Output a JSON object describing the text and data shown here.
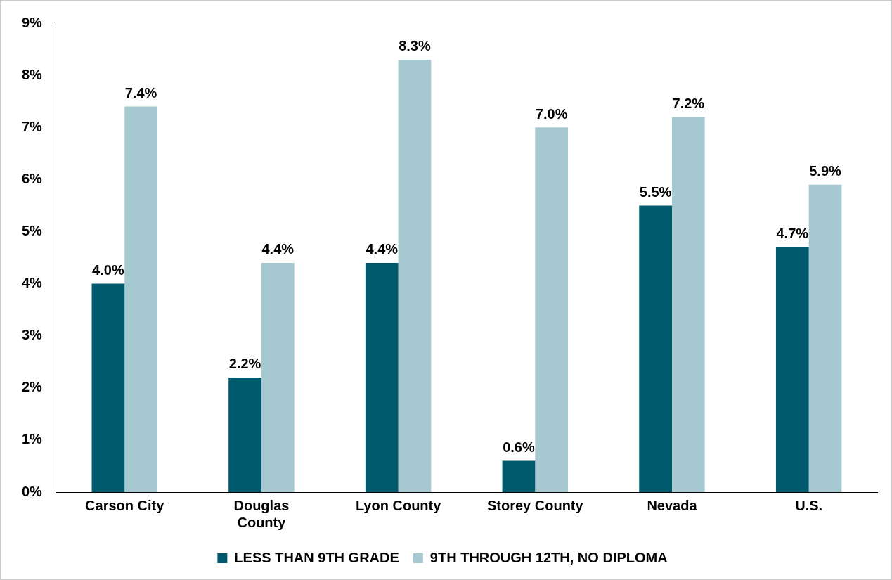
{
  "chart_data": {
    "type": "bar",
    "categories": [
      "Carson City",
      "Douglas County",
      "Lyon County",
      "Storey County",
      "Nevada",
      "U.S."
    ],
    "series": [
      {
        "name": "LESS THAN 9TH GRADE",
        "color": "#005a6e",
        "values": [
          4.0,
          2.2,
          4.4,
          0.6,
          5.5,
          4.7
        ],
        "value_labels": [
          "4.0%",
          "2.2%",
          "4.4%",
          "0.6%",
          "5.5%",
          "4.7%"
        ]
      },
      {
        "name": "9TH THROUGH 12TH, NO DIPLOMA",
        "color": "#a5c8d1",
        "values": [
          7.4,
          4.4,
          8.3,
          7.0,
          7.2,
          5.9
        ],
        "value_labels": [
          "7.4%",
          "4.4%",
          "8.3%",
          "7.0%",
          "7.2%",
          "5.9%"
        ]
      }
    ],
    "ylim": [
      0,
      9
    ],
    "yticks": [
      {
        "value": 0,
        "label": "0%"
      },
      {
        "value": 1,
        "label": "1%"
      },
      {
        "value": 2,
        "label": "2%"
      },
      {
        "value": 3,
        "label": "3%"
      },
      {
        "value": 4,
        "label": "4%"
      },
      {
        "value": 5,
        "label": "5%"
      },
      {
        "value": 6,
        "label": "6%"
      },
      {
        "value": 7,
        "label": "7%"
      },
      {
        "value": 8,
        "label": "8%"
      },
      {
        "value": 9,
        "label": "9%"
      }
    ],
    "grid": false,
    "legend": "bottom"
  }
}
